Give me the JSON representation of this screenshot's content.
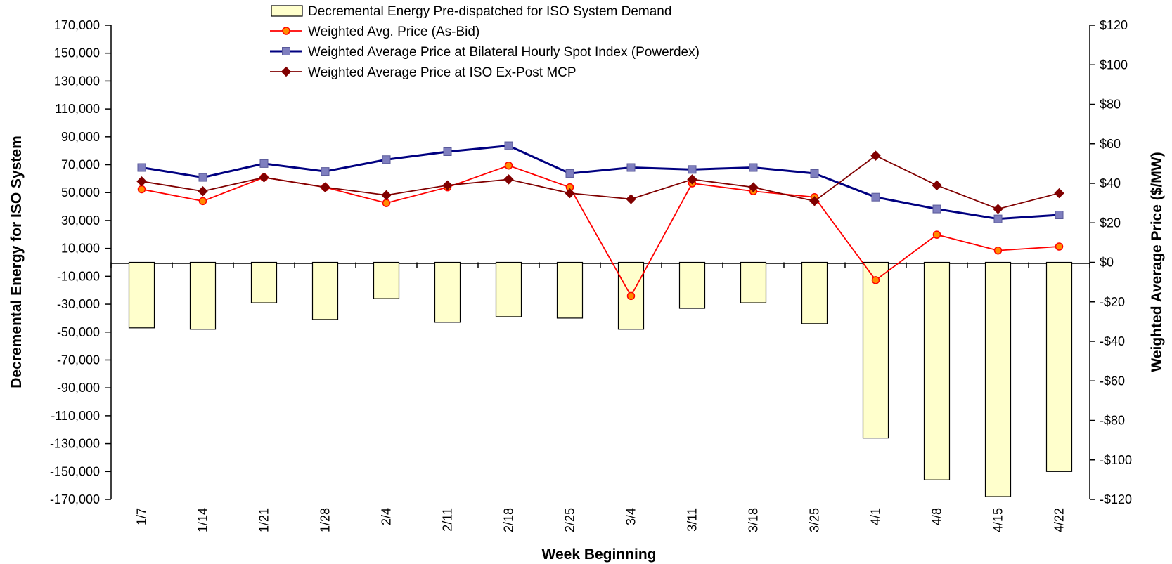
{
  "chart_data": {
    "type": "bar",
    "categories": [
      "1/7",
      "1/14",
      "1/21",
      "1/28",
      "2/4",
      "2/11",
      "2/18",
      "2/25",
      "3/4",
      "3/11",
      "3/18",
      "3/25",
      "4/1",
      "4/8",
      "4/15",
      "4/22"
    ],
    "xlabel": "Week Beginning",
    "ylabel": "Decremental Energy for ISO System",
    "y2label": "Weighted Average Price ($/MW)",
    "ylim": [
      -170000,
      170000
    ],
    "y2lim": [
      -120,
      120
    ],
    "y_ticks": [
      170000,
      150000,
      130000,
      110000,
      90000,
      70000,
      50000,
      30000,
      10000,
      -10000,
      -30000,
      -50000,
      -70000,
      -90000,
      -110000,
      -130000,
      -150000,
      -170000
    ],
    "y2_ticks": [
      120,
      100,
      80,
      60,
      40,
      20,
      0,
      -20,
      -40,
      -60,
      -80,
      -100,
      -120
    ],
    "y_tick_labels": [
      "170,000",
      "150,000",
      "130,000",
      "110,000",
      "90,000",
      "70,000",
      "50,000",
      "30,000",
      "10,000",
      "-10,000",
      "-30,000",
      "-50,000",
      "-70,000",
      "-90,000",
      "-110,000",
      "-130,000",
      "-150,000",
      "-170,000"
    ],
    "y2_tick_labels": [
      "$120",
      "$100",
      "$80",
      "$60",
      "$40",
      "$20",
      "$0",
      "-$20",
      "-$40",
      "-$60",
      "-$80",
      "-$100",
      "-$120"
    ],
    "grid": false,
    "legend_position": "top-center",
    "series": [
      {
        "name": "Decremental Energy Pre-dispatched for ISO System Demand",
        "type": "bar",
        "axis": "left",
        "color": "#ffffcc",
        "stroke": "#000000",
        "values": [
          -47000,
          -48000,
          -29000,
          -41000,
          -26000,
          -43000,
          -39000,
          -40000,
          -48000,
          -33000,
          -29000,
          -44000,
          -126000,
          -156000,
          -168000,
          -150000
        ]
      },
      {
        "name": "Weighted Avg. Price (As-Bid)",
        "type": "line",
        "axis": "right",
        "marker": "circle",
        "color": "#ff0000",
        "values": [
          37,
          31,
          43,
          38,
          30,
          38,
          49,
          38,
          -17,
          40,
          36,
          33,
          -9,
          14,
          6,
          8
        ]
      },
      {
        "name": "Weighted Average Price at Bilateral Hourly Spot Index (Powerdex)",
        "type": "line",
        "axis": "right",
        "marker": "square",
        "color": "#000080",
        "values": [
          48,
          43,
          50,
          46,
          52,
          56,
          59,
          45,
          48,
          47,
          48,
          45,
          33,
          27,
          22,
          24
        ]
      },
      {
        "name": "Weighted Average Price at ISO Ex-Post MCP",
        "type": "line",
        "axis": "right",
        "marker": "diamond",
        "color": "#800000",
        "values": [
          41,
          36,
          43,
          38,
          34,
          39,
          42,
          35,
          32,
          42,
          38,
          31,
          54,
          39,
          27,
          35
        ]
      }
    ]
  }
}
